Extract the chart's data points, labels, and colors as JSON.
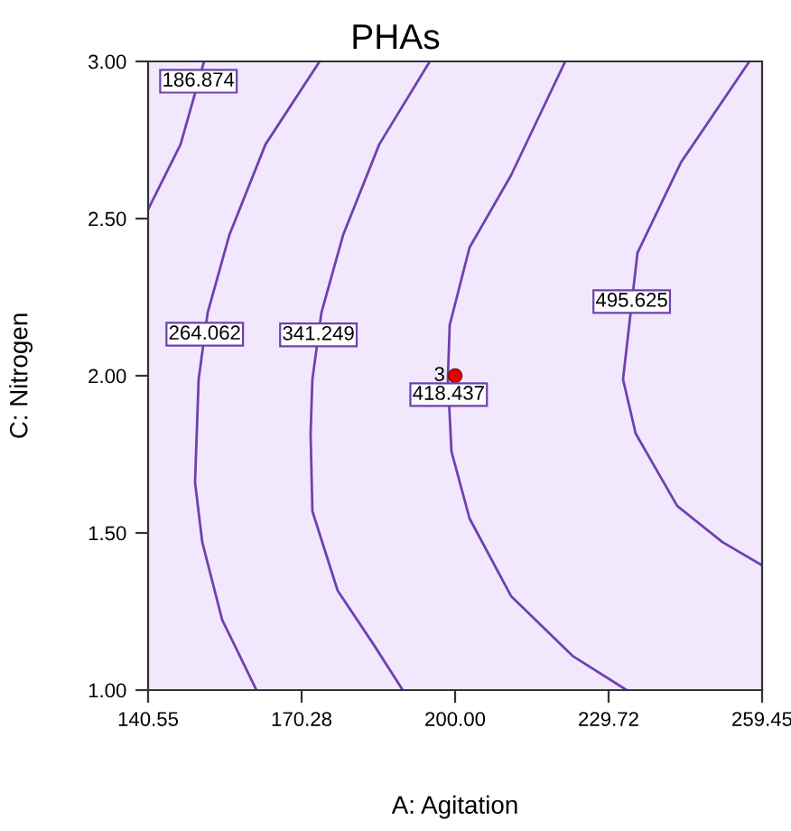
{
  "chart_data": {
    "type": "line",
    "title": "PHAs",
    "xlabel": "A: Agitation",
    "ylabel": "C: Nitrogen",
    "xlim": [
      140.55,
      259.45
    ],
    "ylim": [
      1.0,
      3.0
    ],
    "xticks": [
      140.55,
      170.28,
      {
        "value": 200,
        "label": "200.00"
      },
      229.72,
      259.45
    ],
    "yticks": [
      {
        "value": 1,
        "label": "1.00"
      },
      {
        "value": 1.5,
        "label": "1.50"
      },
      {
        "value": 2,
        "label": "2.00"
      },
      {
        "value": 2.5,
        "label": "2.50"
      },
      {
        "value": 3,
        "label": "3.00"
      }
    ],
    "grid": false,
    "legend": false,
    "marker": "none",
    "line_style": "solid",
    "series": [
      {
        "color": "#7040b0",
        "x": [
          140.55,
          146.84,
          151.39
        ],
        "values": [
          2.529,
          2.736,
          3.0
        ]
      },
      {
        "color": "#7040b0",
        "x": [
          173.77,
          163.28,
          156.29,
          152.09,
          150.34,
          149.64,
          151.04,
          154.89,
          161.53
        ],
        "values": [
          3.0,
          2.736,
          2.448,
          2.201,
          1.989,
          1.661,
          1.471,
          1.224,
          1.0
        ]
      },
      {
        "color": "#7040b0",
        "x": [
          195.1,
          185.31,
          178.32,
          174.12,
          172.37,
          172.02,
          172.37,
          177.27,
          184.26,
          189.86
        ],
        "values": [
          3.0,
          2.736,
          2.448,
          2.201,
          1.989,
          1.816,
          1.569,
          1.316,
          1.144,
          1.0
        ]
      },
      {
        "color": "#7040b0",
        "x": [
          221.33,
          210.84,
          202.8,
          198.95,
          198.6,
          199.3,
          202.8,
          210.84,
          222.73,
          233.22
        ],
        "values": [
          3.0,
          2.638,
          2.408,
          2.161,
          1.989,
          1.759,
          1.546,
          1.299,
          1.109,
          1.0
        ]
      },
      {
        "color": "#7040b0",
        "x": [
          256.99,
          243.71,
          235.32,
          232.52,
          234.97,
          243.01,
          251.76,
          259.45
        ],
        "values": [
          3.0,
          2.678,
          2.391,
          1.989,
          1.816,
          1.586,
          1.471,
          1.397
        ]
      },
      {
        "type": "scatter",
        "marker": "circle",
        "color": "#e00000",
        "x": [
          200
        ],
        "values": [
          2.0
        ]
      }
    ],
    "annotations": [
      {
        "text": "186.874",
        "x": 150.3,
        "y": 2.937
      },
      {
        "text": "264.062",
        "x": 151.52,
        "y": 2.132
      },
      {
        "text": "341.249",
        "x": 173.53,
        "y": 2.13
      },
      {
        "text": "418.437",
        "x": 198.75,
        "y": 1.94
      },
      {
        "text": "495.625",
        "x": 234.2,
        "y": 2.236
      },
      {
        "text": "3",
        "x": 200,
        "y": 2.0
      }
    ]
  }
}
